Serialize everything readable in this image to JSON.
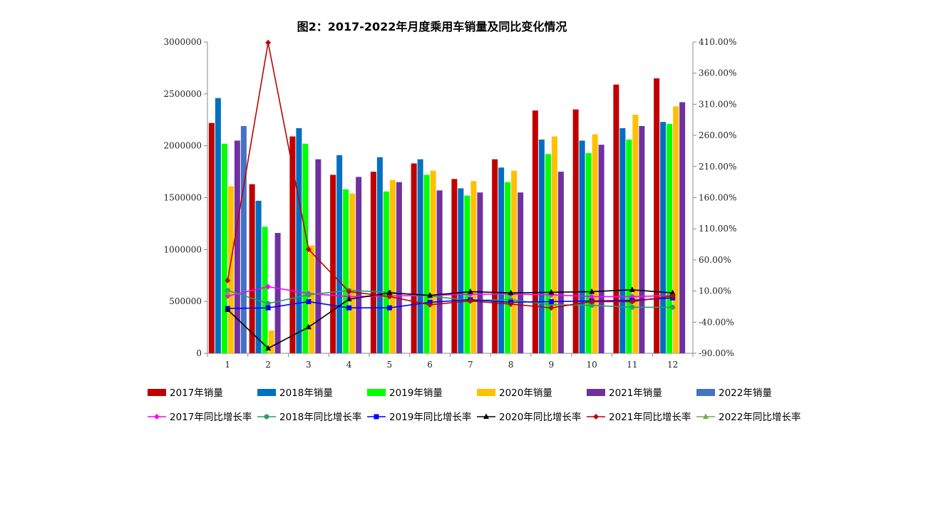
{
  "chart_data": {
    "type": "bar+line",
    "title": "图2：2017-2022年月度乘用车销量及同比变化情况",
    "categories": [
      "1",
      "2",
      "3",
      "4",
      "5",
      "6",
      "7",
      "8",
      "9",
      "10",
      "11",
      "12"
    ],
    "y_left": {
      "ylim": [
        0,
        3000000
      ],
      "ticks": [
        "0",
        "500000",
        "1000000",
        "1500000",
        "2000000",
        "2500000",
        "3000000"
      ]
    },
    "y_right": {
      "ylim": [
        -0.9,
        4.1
      ],
      "ticks": [
        "-90.00%",
        "-40.00%",
        "10.00%",
        "60.00%",
        "110.00%",
        "160.00%",
        "210.00%",
        "260.00%",
        "310.00%",
        "360.00%",
        "410.00%"
      ]
    },
    "bar_series": [
      {
        "name": "2017年销量",
        "color": "#c00000",
        "values": [
          2220000,
          1630000,
          2090000,
          1720000,
          1750000,
          1830000,
          1680000,
          1870000,
          2340000,
          2350000,
          2590000,
          2650000
        ]
      },
      {
        "name": "2018年销量",
        "color": "#0070c0",
        "values": [
          2460000,
          1470000,
          2170000,
          1910000,
          1890000,
          1870000,
          1590000,
          1790000,
          2060000,
          2050000,
          2170000,
          2230000
        ]
      },
      {
        "name": "2019年销量",
        "color": "#00ff00",
        "values": [
          2020000,
          1220000,
          2020000,
          1580000,
          1560000,
          1720000,
          1520000,
          1650000,
          1920000,
          1930000,
          2060000,
          2210000
        ]
      },
      {
        "name": "2020年销量",
        "color": "#ffc000",
        "values": [
          1610000,
          220000,
          1040000,
          1540000,
          1670000,
          1760000,
          1660000,
          1760000,
          2090000,
          2110000,
          2300000,
          2380000
        ]
      },
      {
        "name": "2021年销量",
        "color": "#7030a0",
        "values": [
          2050000,
          1160000,
          1870000,
          1700000,
          1650000,
          1570000,
          1550000,
          1550000,
          1750000,
          2010000,
          2190000,
          2420000
        ]
      },
      {
        "name": "2022年销量",
        "color": "#4472c4",
        "values": [
          2190000,
          null,
          null,
          null,
          null,
          null,
          null,
          null,
          null,
          null,
          null,
          null
        ]
      }
    ],
    "line_series": [
      {
        "name": "2017年同比增长率",
        "color": "#ff00ff",
        "marker": "diamond",
        "values": [
          0.02,
          0.17,
          0.06,
          0.01,
          0.02,
          0.03,
          0.05,
          0.05,
          0.04,
          0.01,
          0.01,
          0.03
        ]
      },
      {
        "name": "2018年同比增长率",
        "color": "#2e9b6b",
        "marker": "circle",
        "values": [
          0.11,
          -0.1,
          0.04,
          0.11,
          0.08,
          0.02,
          -0.05,
          -0.04,
          -0.12,
          -0.13,
          -0.16,
          -0.16
        ]
      },
      {
        "name": "2019年同比增长率",
        "color": "#0000ff",
        "marker": "square",
        "values": [
          -0.18,
          -0.17,
          -0.07,
          -0.17,
          -0.17,
          -0.08,
          -0.04,
          -0.08,
          -0.07,
          -0.06,
          -0.05,
          -0.01
        ]
      },
      {
        "name": "2020年同比增长率",
        "color": "#000000",
        "marker": "triangle",
        "values": [
          -0.2,
          -0.82,
          -0.48,
          -0.03,
          0.07,
          0.03,
          0.09,
          0.07,
          0.08,
          0.09,
          0.12,
          0.07
        ]
      },
      {
        "name": "2021年同比增长率",
        "color": "#c00000",
        "marker": "diamond",
        "values": [
          0.27,
          4.09,
          0.77,
          0.09,
          0.01,
          -0.12,
          -0.06,
          -0.11,
          -0.17,
          -0.07,
          -0.07,
          0.02
        ]
      },
      {
        "name": "2022年同比增长率",
        "color": "#70ad47",
        "marker": "triangle",
        "values": [
          0.07,
          null,
          null,
          null,
          null,
          null,
          null,
          null,
          null,
          null,
          null,
          null
        ]
      }
    ],
    "legend_position": "bottom",
    "grid": false
  }
}
